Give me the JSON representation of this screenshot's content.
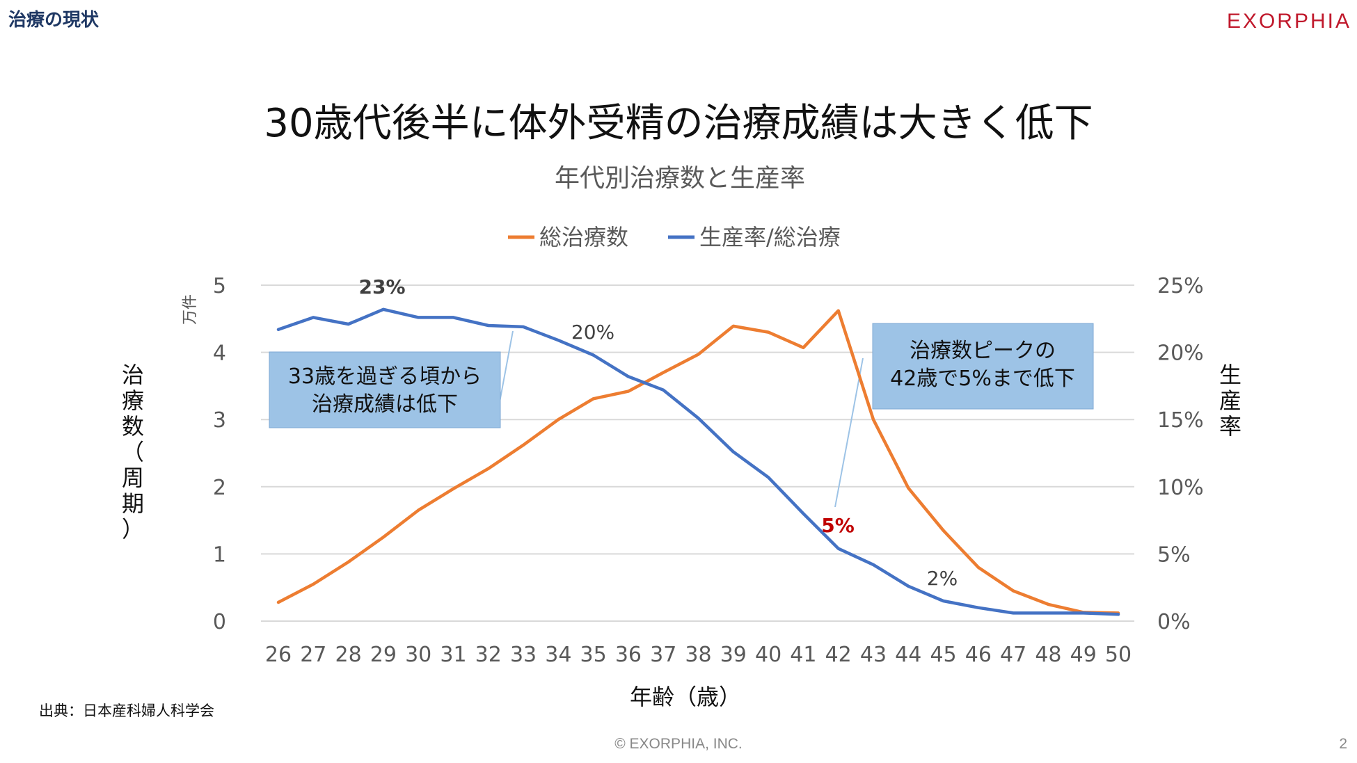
{
  "header": {
    "section_title": "治療の現状",
    "logo_text": "EXORPHIA",
    "main_title": "30歳代後半に体外受精の治療成績は大きく低下"
  },
  "footer": {
    "source": "出典：日本産科婦人科学会",
    "copyright": "© EXORPHIA, INC.",
    "page_number": "2"
  },
  "colors": {
    "orange": "#ed7d31",
    "blue": "#4472c4",
    "callout_fill": "#9dc3e6",
    "grid": "#d9d9d9",
    "accent_red": "#c00000",
    "brand_red": "#c0192c"
  },
  "chart_data": {
    "type": "line",
    "title": "年代別治療数と生産率",
    "categories": [
      "26",
      "27",
      "28",
      "29",
      "30",
      "31",
      "32",
      "33",
      "34",
      "35",
      "36",
      "37",
      "38",
      "39",
      "40",
      "41",
      "42",
      "43",
      "44",
      "45",
      "46",
      "47",
      "48",
      "49",
      "50"
    ],
    "series": [
      {
        "name": "総治療数",
        "axis": "left",
        "values": [
          0.28,
          0.55,
          0.88,
          1.25,
          1.65,
          1.97,
          2.27,
          2.62,
          3.0,
          3.31,
          3.42,
          3.7,
          3.97,
          4.39,
          4.3,
          4.07,
          4.62,
          3.0,
          1.98,
          1.35,
          0.8,
          0.45,
          0.25,
          0.13,
          0.12
        ]
      },
      {
        "name": "生産率/総治療",
        "axis": "right",
        "values": [
          21.7,
          22.6,
          22.1,
          23.2,
          22.6,
          22.6,
          22.0,
          21.9,
          20.9,
          19.8,
          18.2,
          17.2,
          15.1,
          12.6,
          10.7,
          8.0,
          5.4,
          4.2,
          2.6,
          1.5,
          1.0,
          0.6,
          0.6,
          0.6,
          0.5
        ]
      }
    ],
    "left_axis": {
      "ylim": [
        0,
        5
      ],
      "ticks": [
        "0",
        "1",
        "2",
        "3",
        "4",
        "5"
      ],
      "unit": "万件",
      "label": "治療数（周期）"
    },
    "right_axis": {
      "ylim": [
        0,
        25
      ],
      "ticks": [
        "0%",
        "5%",
        "10%",
        "15%",
        "20%",
        "25%"
      ],
      "label": "生産率"
    },
    "xlabel": "年齢（歳）",
    "annotations": {
      "peak_rate": "23%",
      "rate_35": "20%",
      "rate_42": "5%",
      "rate_45": "2%",
      "callout_left": [
        "33歳を過ぎる頃から",
        "治療成績は低下"
      ],
      "callout_right": [
        "治療数ピークの",
        "42歳で5%まで低下"
      ]
    },
    "legend_position": "top-center"
  }
}
